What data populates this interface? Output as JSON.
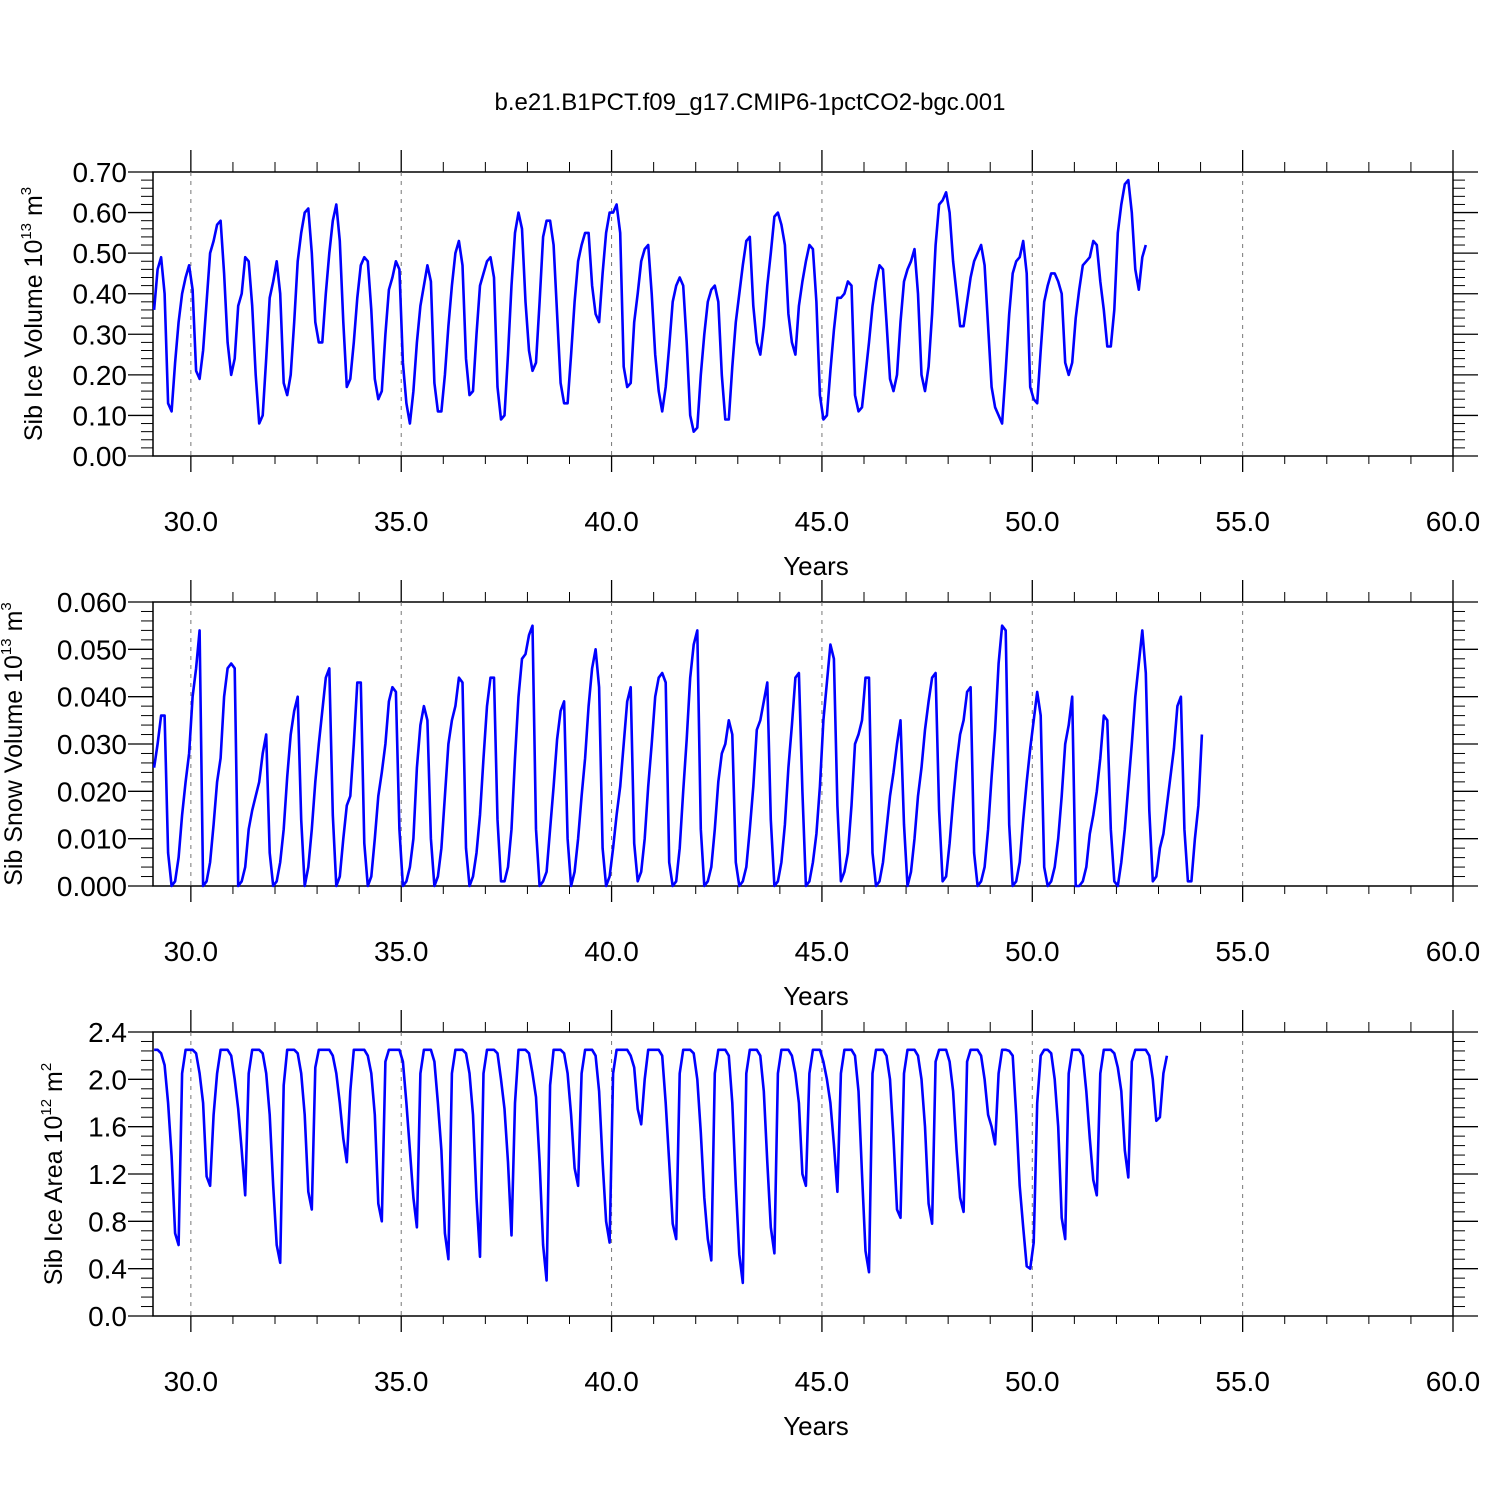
{
  "figure": {
    "title": "b.e21.B1PCT.f09_g17.CMIP6-1pctCO2-bgc.001",
    "line_color": "#0000ff"
  },
  "chart_data": [
    {
      "type": "line",
      "title": "",
      "xlabel": "Years",
      "ylabel": {
        "text": "Sib Ice Volume 10",
        "sup": "13",
        "unit": " m",
        "unit_sup": "3"
      },
      "xlim": [
        29.1,
        60.0
      ],
      "ylim": [
        0.0,
        0.7
      ],
      "xticks": [
        30,
        35,
        40,
        45,
        50,
        55,
        60
      ],
      "xtick_labels": [
        "30.0",
        "35.0",
        "40.0",
        "45.0",
        "50.0",
        "55.0",
        "60.0"
      ],
      "yticks": [
        0.0,
        0.1,
        0.2,
        0.3,
        0.4,
        0.5,
        0.6,
        0.7
      ],
      "ytick_labels": [
        "0.00",
        "0.10",
        "0.20",
        "0.30",
        "0.40",
        "0.50",
        "0.60",
        "0.70"
      ],
      "grid": "vertical dashed at major x ticks",
      "x_start": 29.125,
      "x_step": 0.0833,
      "values": [
        0.36,
        0.46,
        0.49,
        0.4,
        0.13,
        0.11,
        0.23,
        0.33,
        0.4,
        0.44,
        0.47,
        0.41,
        0.21,
        0.19,
        0.26,
        0.38,
        0.5,
        0.53,
        0.57,
        0.58,
        0.45,
        0.28,
        0.2,
        0.24,
        0.37,
        0.4,
        0.49,
        0.48,
        0.37,
        0.2,
        0.08,
        0.1,
        0.24,
        0.39,
        0.43,
        0.48,
        0.4,
        0.18,
        0.15,
        0.2,
        0.33,
        0.48,
        0.55,
        0.6,
        0.61,
        0.5,
        0.33,
        0.28,
        0.28,
        0.4,
        0.5,
        0.58,
        0.62,
        0.53,
        0.33,
        0.17,
        0.19,
        0.28,
        0.39,
        0.47,
        0.49,
        0.48,
        0.36,
        0.19,
        0.14,
        0.16,
        0.3,
        0.41,
        0.44,
        0.48,
        0.46,
        0.23,
        0.13,
        0.08,
        0.16,
        0.28,
        0.37,
        0.42,
        0.47,
        0.43,
        0.18,
        0.11,
        0.11,
        0.2,
        0.32,
        0.42,
        0.5,
        0.53,
        0.47,
        0.24,
        0.15,
        0.16,
        0.3,
        0.42,
        0.45,
        0.48,
        0.49,
        0.44,
        0.17,
        0.09,
        0.1,
        0.25,
        0.42,
        0.55,
        0.6,
        0.56,
        0.38,
        0.26,
        0.21,
        0.23,
        0.38,
        0.54,
        0.58,
        0.58,
        0.52,
        0.35,
        0.18,
        0.13,
        0.13,
        0.25,
        0.38,
        0.48,
        0.52,
        0.55,
        0.55,
        0.42,
        0.35,
        0.33,
        0.45,
        0.55,
        0.6,
        0.6,
        0.62,
        0.55,
        0.22,
        0.17,
        0.18,
        0.33,
        0.4,
        0.48,
        0.51,
        0.52,
        0.4,
        0.25,
        0.16,
        0.11,
        0.17,
        0.27,
        0.38,
        0.42,
        0.44,
        0.42,
        0.28,
        0.1,
        0.06,
        0.07,
        0.2,
        0.3,
        0.38,
        0.41,
        0.42,
        0.38,
        0.2,
        0.09,
        0.09,
        0.22,
        0.33,
        0.4,
        0.47,
        0.53,
        0.54,
        0.37,
        0.28,
        0.25,
        0.32,
        0.42,
        0.5,
        0.59,
        0.6,
        0.57,
        0.52,
        0.35,
        0.28,
        0.25,
        0.37,
        0.43,
        0.48,
        0.52,
        0.51,
        0.38,
        0.15,
        0.09,
        0.1,
        0.21,
        0.31,
        0.39,
        0.39,
        0.4,
        0.43,
        0.42,
        0.15,
        0.11,
        0.12,
        0.2,
        0.28,
        0.37,
        0.43,
        0.47,
        0.46,
        0.33,
        0.19,
        0.16,
        0.2,
        0.33,
        0.43,
        0.46,
        0.48,
        0.51,
        0.4,
        0.2,
        0.16,
        0.22,
        0.35,
        0.52,
        0.62,
        0.63,
        0.65,
        0.6,
        0.48,
        0.4,
        0.32,
        0.32,
        0.38,
        0.44,
        0.48,
        0.5,
        0.52,
        0.47,
        0.32,
        0.17,
        0.12,
        0.1,
        0.08,
        0.21,
        0.35,
        0.45,
        0.48,
        0.49,
        0.53,
        0.45,
        0.17,
        0.14,
        0.13,
        0.26,
        0.38,
        0.42,
        0.45,
        0.45,
        0.43,
        0.4,
        0.23,
        0.2,
        0.23,
        0.34,
        0.41,
        0.47,
        0.48,
        0.49,
        0.53,
        0.52,
        0.43,
        0.36,
        0.27,
        0.27,
        0.36,
        0.55,
        0.62,
        0.67,
        0.68,
        0.6,
        0.46,
        0.41,
        0.49,
        0.52
      ]
    },
    {
      "type": "line",
      "title": "",
      "xlabel": "Years",
      "ylabel": {
        "text": "Sib Snow Volume 10",
        "sup": "13",
        "unit": " m",
        "unit_sup": "3"
      },
      "xlim": [
        29.1,
        60.0
      ],
      "ylim": [
        0.0,
        0.06
      ],
      "xticks": [
        30,
        35,
        40,
        45,
        50,
        55,
        60
      ],
      "xtick_labels": [
        "30.0",
        "35.0",
        "40.0",
        "45.0",
        "50.0",
        "55.0",
        "60.0"
      ],
      "yticks": [
        0.0,
        0.01,
        0.02,
        0.03,
        0.04,
        0.05,
        0.06
      ],
      "ytick_labels": [
        "0.000",
        "0.010",
        "0.020",
        "0.030",
        "0.040",
        "0.050",
        "0.060"
      ],
      "grid": "vertical dashed at major x ticks",
      "x_start": 29.125,
      "x_step": 0.0833,
      "values": [
        0.025,
        0.03,
        0.036,
        0.036,
        0.007,
        0.0,
        0.001,
        0.006,
        0.015,
        0.022,
        0.028,
        0.04,
        0.046,
        0.054,
        0.0,
        0.001,
        0.005,
        0.013,
        0.022,
        0.027,
        0.04,
        0.046,
        0.047,
        0.046,
        0.0,
        0.001,
        0.004,
        0.012,
        0.016,
        0.019,
        0.022,
        0.028,
        0.032,
        0.007,
        0.0,
        0.001,
        0.005,
        0.012,
        0.023,
        0.032,
        0.037,
        0.04,
        0.014,
        0.0,
        0.004,
        0.012,
        0.022,
        0.03,
        0.037,
        0.044,
        0.046,
        0.015,
        0.0,
        0.002,
        0.01,
        0.017,
        0.019,
        0.03,
        0.043,
        0.043,
        0.009,
        0.0,
        0.002,
        0.01,
        0.019,
        0.024,
        0.03,
        0.039,
        0.042,
        0.041,
        0.012,
        0.0,
        0.001,
        0.004,
        0.01,
        0.025,
        0.034,
        0.038,
        0.035,
        0.01,
        0.0,
        0.002,
        0.008,
        0.019,
        0.03,
        0.035,
        0.038,
        0.044,
        0.043,
        0.008,
        0.0,
        0.002,
        0.007,
        0.015,
        0.027,
        0.038,
        0.044,
        0.044,
        0.014,
        0.001,
        0.001,
        0.004,
        0.012,
        0.027,
        0.04,
        0.048,
        0.049,
        0.053,
        0.055,
        0.012,
        0.0,
        0.001,
        0.003,
        0.012,
        0.021,
        0.031,
        0.037,
        0.039,
        0.01,
        0.0,
        0.003,
        0.01,
        0.019,
        0.027,
        0.038,
        0.046,
        0.05,
        0.042,
        0.008,
        0.0,
        0.002,
        0.008,
        0.015,
        0.021,
        0.03,
        0.039,
        0.042,
        0.009,
        0.001,
        0.003,
        0.01,
        0.021,
        0.03,
        0.04,
        0.044,
        0.045,
        0.043,
        0.005,
        0.0,
        0.001,
        0.008,
        0.02,
        0.031,
        0.044,
        0.051,
        0.054,
        0.012,
        0.0,
        0.001,
        0.004,
        0.012,
        0.022,
        0.028,
        0.03,
        0.035,
        0.032,
        0.005,
        0.0,
        0.001,
        0.004,
        0.012,
        0.021,
        0.033,
        0.035,
        0.039,
        0.043,
        0.014,
        0.0,
        0.001,
        0.005,
        0.013,
        0.025,
        0.034,
        0.044,
        0.045,
        0.02,
        0.0,
        0.001,
        0.005,
        0.011,
        0.021,
        0.035,
        0.043,
        0.051,
        0.048,
        0.017,
        0.001,
        0.003,
        0.007,
        0.017,
        0.03,
        0.032,
        0.035,
        0.044,
        0.044,
        0.007,
        0.0,
        0.001,
        0.005,
        0.012,
        0.019,
        0.024,
        0.03,
        0.035,
        0.013,
        0.0,
        0.003,
        0.01,
        0.019,
        0.025,
        0.033,
        0.039,
        0.044,
        0.045,
        0.016,
        0.001,
        0.002,
        0.009,
        0.018,
        0.026,
        0.032,
        0.035,
        0.041,
        0.042,
        0.007,
        0.0,
        0.001,
        0.004,
        0.012,
        0.023,
        0.033,
        0.047,
        0.055,
        0.054,
        0.013,
        0.0,
        0.001,
        0.005,
        0.014,
        0.022,
        0.029,
        0.035,
        0.041,
        0.036,
        0.004,
        0.0,
        0.001,
        0.004,
        0.01,
        0.019,
        0.03,
        0.034,
        0.04,
        0.0,
        0.0,
        0.001,
        0.004,
        0.011,
        0.015,
        0.02,
        0.027,
        0.036,
        0.035,
        0.012,
        0.001,
        0.0,
        0.005,
        0.012,
        0.021,
        0.03,
        0.04,
        0.047,
        0.054,
        0.045,
        0.016,
        0.001,
        0.002,
        0.008,
        0.011,
        0.017,
        0.023,
        0.029,
        0.038,
        0.04,
        0.012,
        0.001,
        0.001,
        0.01,
        0.017,
        0.032
      ]
    },
    {
      "type": "line",
      "title": "",
      "xlabel": "Years",
      "ylabel": {
        "text": "Sib Ice Area 10",
        "sup": "12",
        "unit": " m",
        "unit_sup": "2"
      },
      "xlim": [
        29.1,
        60.0
      ],
      "ylim": [
        0.0,
        2.4
      ],
      "xticks": [
        30,
        35,
        40,
        45,
        50,
        55,
        60
      ],
      "xtick_labels": [
        "30.0",
        "35.0",
        "40.0",
        "45.0",
        "50.0",
        "55.0",
        "60.0"
      ],
      "yticks": [
        0.0,
        0.4,
        0.8,
        1.2,
        1.6,
        2.0,
        2.4
      ],
      "ytick_labels": [
        "0.0",
        "0.4",
        "0.8",
        "1.2",
        "1.6",
        "2.0",
        "2.4"
      ],
      "grid": "vertical dashed at major x ticks",
      "x_start": 29.125,
      "x_step": 0.0833,
      "values": [
        2.25,
        2.25,
        2.22,
        2.12,
        1.8,
        1.35,
        0.7,
        0.6,
        2.05,
        2.25,
        2.25,
        2.25,
        2.22,
        2.05,
        1.8,
        1.18,
        1.1,
        1.7,
        2.05,
        2.25,
        2.25,
        2.25,
        2.2,
        2.0,
        1.75,
        1.4,
        1.02,
        2.05,
        2.25,
        2.25,
        2.25,
        2.22,
        2.05,
        1.7,
        1.1,
        0.6,
        0.45,
        1.95,
        2.25,
        2.25,
        2.25,
        2.22,
        2.05,
        1.7,
        1.05,
        0.9,
        2.1,
        2.25,
        2.25,
        2.25,
        2.25,
        2.2,
        2.05,
        1.8,
        1.5,
        1.3,
        1.9,
        2.25,
        2.25,
        2.25,
        2.25,
        2.2,
        2.05,
        1.7,
        0.95,
        0.8,
        2.15,
        2.25,
        2.25,
        2.25,
        2.25,
        2.15,
        1.8,
        1.4,
        1.0,
        0.75,
        2.05,
        2.25,
        2.25,
        2.25,
        2.15,
        1.8,
        1.4,
        0.7,
        0.48,
        2.05,
        2.25,
        2.25,
        2.25,
        2.22,
        2.05,
        1.7,
        1.0,
        0.5,
        2.05,
        2.25,
        2.25,
        2.25,
        2.22,
        2.0,
        1.75,
        1.3,
        0.68,
        1.8,
        2.25,
        2.25,
        2.25,
        2.22,
        2.05,
        1.85,
        1.3,
        0.6,
        0.3,
        1.95,
        2.25,
        2.25,
        2.25,
        2.22,
        2.05,
        1.7,
        1.25,
        1.1,
        2.05,
        2.25,
        2.25,
        2.25,
        2.2,
        1.9,
        1.3,
        0.8,
        0.62,
        2.05,
        2.25,
        2.25,
        2.25,
        2.25,
        2.2,
        2.1,
        1.75,
        1.62,
        2.0,
        2.25,
        2.25,
        2.25,
        2.25,
        2.2,
        1.8,
        1.3,
        0.78,
        0.65,
        2.05,
        2.25,
        2.25,
        2.25,
        2.22,
        2.0,
        1.55,
        1.0,
        0.65,
        0.47,
        2.05,
        2.25,
        2.25,
        2.25,
        2.2,
        1.8,
        1.1,
        0.52,
        0.28,
        2.05,
        2.25,
        2.25,
        2.25,
        2.2,
        1.9,
        1.3,
        0.75,
        0.53,
        2.05,
        2.25,
        2.25,
        2.25,
        2.2,
        2.05,
        1.8,
        1.2,
        1.1,
        2.05,
        2.25,
        2.25,
        2.25,
        2.15,
        2.0,
        1.8,
        1.45,
        1.05,
        2.05,
        2.25,
        2.25,
        2.25,
        2.2,
        1.9,
        1.2,
        0.55,
        0.37,
        2.05,
        2.25,
        2.25,
        2.25,
        2.2,
        2.0,
        1.5,
        0.9,
        0.83,
        2.05,
        2.25,
        2.25,
        2.25,
        2.2,
        2.0,
        1.6,
        0.95,
        0.78,
        2.15,
        2.25,
        2.25,
        2.25,
        2.15,
        1.9,
        1.4,
        1.0,
        0.88,
        2.15,
        2.25,
        2.25,
        2.25,
        2.2,
        2.0,
        1.7,
        1.6,
        1.45,
        2.05,
        2.25,
        2.25,
        2.24,
        2.2,
        1.7,
        1.1,
        0.75,
        0.42,
        0.4,
        0.62,
        1.8,
        2.2,
        2.25,
        2.25,
        2.22,
        2.0,
        1.6,
        0.83,
        0.65,
        2.05,
        2.25,
        2.25,
        2.25,
        2.2,
        1.9,
        1.5,
        1.15,
        1.02,
        2.05,
        2.25,
        2.25,
        2.25,
        2.22,
        2.1,
        1.9,
        1.4,
        1.17,
        2.15,
        2.25,
        2.25,
        2.25,
        2.25,
        2.2,
        2.0,
        1.65,
        1.68,
        2.05,
        2.2
      ]
    }
  ]
}
